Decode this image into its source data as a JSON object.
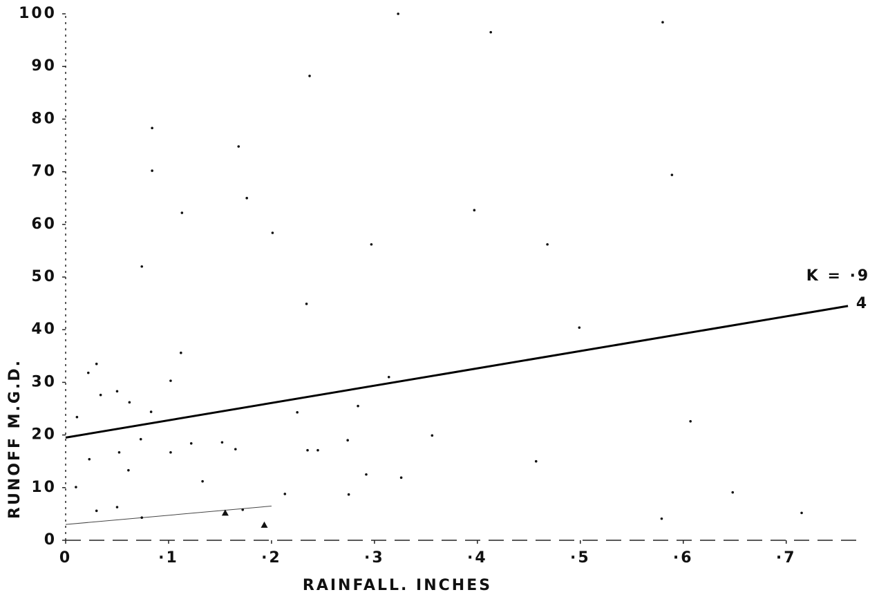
{
  "chart_data": {
    "type": "scatter",
    "x_label": "RAINFALL.     INCHES",
    "y_label": "RUNOFF      M.G.D.",
    "annotations": [
      "K = ·9",
      "4"
    ],
    "xlim": [
      0,
      0.77
    ],
    "ylim": [
      0,
      100
    ],
    "xticks": [
      0,
      {
        "value": 0.1,
        "label": "·1"
      },
      {
        "value": 0.2,
        "label": "·2"
      },
      {
        "value": 0.3,
        "label": "·3"
      },
      {
        "value": 0.4,
        "label": "·4"
      },
      {
        "value": 0.5,
        "label": "·5"
      },
      {
        "value": 0.6,
        "label": "·6"
      },
      {
        "value": 0.7,
        "label": "·7"
      }
    ],
    "yticks": [
      0,
      10,
      20,
      30,
      40,
      50,
      60,
      70,
      80,
      90,
      100
    ],
    "series": [
      {
        "marker": "dot",
        "color": "#111",
        "x": [
          0.323,
          0.58,
          0.413,
          0.237,
          0.084,
          0.168,
          0.084,
          0.589,
          0.176,
          0.113,
          0.397,
          0.201,
          0.297,
          0.468,
          0.074,
          0.234,
          0.499,
          0.112,
          0.102,
          0.314,
          0.083,
          0.225,
          0.284,
          0.011,
          0.03,
          0.022,
          0.034,
          0.05,
          0.062,
          0.073,
          0.356,
          0.607,
          0.274,
          0.122,
          0.152,
          0.165,
          0.102,
          0.235,
          0.245,
          0.023,
          0.052,
          0.061,
          0.133,
          0.326,
          0.457,
          0.292,
          0.01,
          0.213,
          0.275,
          0.648,
          0.03,
          0.05,
          0.074,
          0.579,
          0.715,
          0.172
        ],
        "values": [
          100,
          98.4,
          96.5,
          88.2,
          78.3,
          74.8,
          70.2,
          69.4,
          65,
          62.2,
          62.7,
          58.4,
          56.2,
          56.2,
          52,
          44.9,
          40.4,
          35.6,
          30.3,
          31,
          24.4,
          24.3,
          25.5,
          23.4,
          33.5,
          31.8,
          27.6,
          28.3,
          26.2,
          19.2,
          19.9,
          22.6,
          19,
          18.4,
          18.6,
          17.3,
          16.7,
          17.1,
          17.1,
          15.4,
          16.7,
          13.3,
          11.2,
          11.9,
          15,
          12.5,
          10.1,
          8.8,
          8.7,
          9.1,
          5.6,
          6.3,
          4.3,
          4.1,
          5.2,
          5.8
        ]
      },
      {
        "marker": "triangle",
        "color": "#111",
        "x": [
          0.155,
          0.193
        ],
        "values": [
          5.2,
          2.9
        ]
      }
    ],
    "lines": [
      {
        "color": "#000",
        "width": 3,
        "x": [
          0,
          0.76
        ],
        "values": [
          19.5,
          44.5
        ]
      },
      {
        "color": "#444",
        "width": 1,
        "x": [
          0,
          0.2
        ],
        "values": [
          3,
          6.5
        ]
      }
    ]
  }
}
